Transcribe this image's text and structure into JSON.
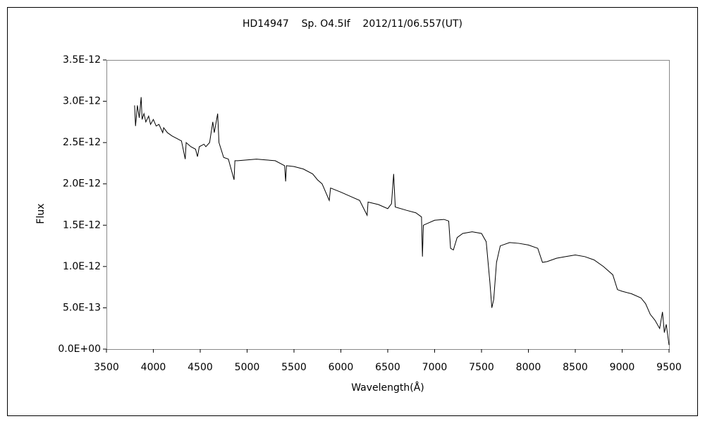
{
  "chart_data": {
    "type": "line",
    "title": "HD14947    Sp. O4.5If    2012/11/06.557(UT)",
    "x_label": "Wavelength(Å)",
    "y_label": "Flux",
    "color": "#000000",
    "x": [
      3800,
      3810,
      3830,
      3850,
      3870,
      3880,
      3900,
      3920,
      3950,
      3970,
      4000,
      4030,
      4060,
      4100,
      4110,
      4150,
      4200,
      4250,
      4300,
      4340,
      4350,
      4400,
      4450,
      4471,
      4490,
      4540,
      4560,
      4600,
      4634,
      4650,
      4686,
      4700,
      4750,
      4800,
      4861,
      4870,
      4900,
      5000,
      5100,
      5200,
      5300,
      5400,
      5411,
      5420,
      5500,
      5600,
      5700,
      5750,
      5800,
      5876,
      5890,
      6000,
      6100,
      6200,
      6280,
      6290,
      6400,
      6500,
      6540,
      6563,
      6580,
      6700,
      6800,
      6860,
      6870,
      6880,
      6920,
      7000,
      7100,
      7150,
      7170,
      7200,
      7240,
      7300,
      7400,
      7500,
      7550,
      7590,
      7610,
      7630,
      7660,
      7700,
      7800,
      7900,
      8000,
      8100,
      8150,
      8200,
      8300,
      8400,
      8500,
      8600,
      8700,
      8800,
      8900,
      8950,
      9000,
      9100,
      9200,
      9250,
      9300,
      9350,
      9400,
      9430,
      9450,
      9470,
      9500
    ],
    "values": [
      2.95e-12,
      2.7e-12,
      2.95e-12,
      2.8e-12,
      3.05e-12,
      2.78e-12,
      2.85e-12,
      2.75e-12,
      2.82e-12,
      2.72e-12,
      2.78e-12,
      2.7e-12,
      2.72e-12,
      2.62e-12,
      2.68e-12,
      2.62e-12,
      2.58e-12,
      2.55e-12,
      2.52e-12,
      2.3e-12,
      2.5e-12,
      2.45e-12,
      2.42e-12,
      2.33e-12,
      2.45e-12,
      2.48e-12,
      2.45e-12,
      2.5e-12,
      2.75e-12,
      2.62e-12,
      2.85e-12,
      2.5e-12,
      2.32e-12,
      2.3e-12,
      2.05e-12,
      2.28e-12,
      2.28e-12,
      2.29e-12,
      2.3e-12,
      2.29e-12,
      2.28e-12,
      2.22e-12,
      2.03e-12,
      2.22e-12,
      2.21e-12,
      2.18e-12,
      2.12e-12,
      2.05e-12,
      2e-12,
      1.8e-12,
      1.95e-12,
      1.9e-12,
      1.85e-12,
      1.8e-12,
      1.62e-12,
      1.78e-12,
      1.75e-12,
      1.7e-12,
      1.76e-12,
      2.12e-12,
      1.72e-12,
      1.68e-12,
      1.65e-12,
      1.6e-12,
      1.12e-12,
      1.5e-12,
      1.52e-12,
      1.56e-12,
      1.57e-12,
      1.55e-12,
      1.22e-12,
      1.2e-12,
      1.35e-12,
      1.4e-12,
      1.42e-12,
      1.4e-12,
      1.3e-12,
      8e-13,
      5e-13,
      6e-13,
      1.05e-12,
      1.25e-12,
      1.29e-12,
      1.28e-12,
      1.26e-12,
      1.22e-12,
      1.05e-12,
      1.06e-12,
      1.1e-12,
      1.12e-12,
      1.14e-12,
      1.12e-12,
      1.08e-12,
      1e-12,
      9e-13,
      7.2e-13,
      7e-13,
      6.7e-13,
      6.2e-13,
      5.5e-13,
      4.2e-13,
      3.5e-13,
      2.5e-13,
      4.5e-13,
      2e-13,
      3e-13,
      5e-14
    ],
    "xlim": [
      3500,
      9500
    ],
    "xticks": [
      3500,
      4000,
      4500,
      5000,
      5500,
      6000,
      6500,
      7000,
      7500,
      8000,
      8500,
      9000,
      9500
    ],
    "ylim": [
      0,
      3.5e-12
    ],
    "yticks": [
      {
        "value": 0,
        "label": "0.0E+00"
      },
      {
        "value": 5e-13,
        "label": "5.0E-13"
      },
      {
        "value": 1e-12,
        "label": "1.0E-12"
      },
      {
        "value": 1.5e-12,
        "label": "1.5E-12"
      },
      {
        "value": 2e-12,
        "label": "2.0E-12"
      },
      {
        "value": 2.5e-12,
        "label": "2.5E-12"
      },
      {
        "value": 3e-12,
        "label": "3.0E-12"
      },
      {
        "value": 3.5e-12,
        "label": "3.5E-12"
      }
    ],
    "grid": false
  }
}
